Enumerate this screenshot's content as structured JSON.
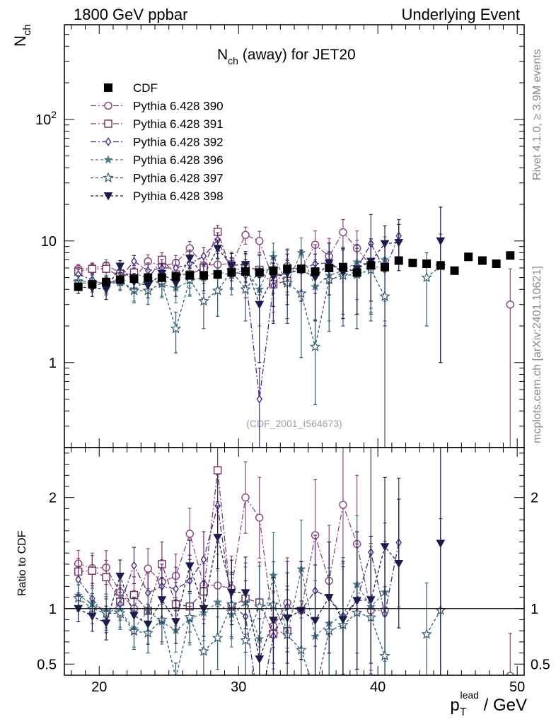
{
  "header": {
    "left": "1800 GeV ppbar",
    "right": "Underlying Event"
  },
  "side_label": "Rivet 4.1.0, ≥ 3.9M events",
  "side_label2": "mcplots.cern.ch [arXiv:2401.10621]",
  "watermark": "(CDF_2001_I564673)",
  "chart_data": {
    "type": "scatter",
    "title_main": "N",
    "title_sub": "ch",
    "title_rest": " (away) for JET20",
    "ylabel_main": "N",
    "ylabel_sub": "ch",
    "ratio_ylabel": "Ratio to CDF",
    "xlabel_main": "p",
    "xlabel_sub": "T",
    "xlabel_sup": "lead",
    "xlabel_rest": " / GeV",
    "xlim": [
      17.5,
      50.5
    ],
    "ylim": [
      0.2,
      600
    ],
    "yscale": "log",
    "ratio_ylim": [
      0.4,
      2.45
    ],
    "x_ticks": [
      20,
      30,
      40,
      50
    ],
    "x_tick_labels": [
      "20",
      "30",
      "40",
      "50"
    ],
    "y_ticks": [
      1,
      10,
      100
    ],
    "y_tick_labels": [
      "1",
      "10",
      "10^2"
    ],
    "ratio_ticks": [
      0.5,
      1,
      2
    ],
    "ratio_tick_labels": [
      "0.5",
      "1",
      "2"
    ],
    "reference": {
      "name": "CDF",
      "color": "#000000",
      "x": [
        18.5,
        19.5,
        20.5,
        21.5,
        22.5,
        23.5,
        24.5,
        25.5,
        26.5,
        27.5,
        28.5,
        29.5,
        30.5,
        31.5,
        32.5,
        33.5,
        34.5,
        35.5,
        36.5,
        37.5,
        38.5,
        39.5,
        40.5,
        41.5,
        42.5,
        43.5,
        44.5,
        45.5,
        46.5,
        47.5,
        48.5,
        49.5
      ],
      "y": [
        4.2,
        4.4,
        4.6,
        4.8,
        4.9,
        5.0,
        5.0,
        5.1,
        5.2,
        5.2,
        5.3,
        5.5,
        5.6,
        5.5,
        5.7,
        5.9,
        5.9,
        5.6,
        6.0,
        6.1,
        5.5,
        6.3,
        6.1,
        6.9,
        6.6,
        6.5,
        6.3,
        5.7,
        7.4,
        6.9,
        6.5,
        7.6
      ]
    },
    "series": [
      {
        "name": "Pythia 6.428 390",
        "marker": "circle-open",
        "color": "#8d4a7d",
        "dash": "8,3,2,3",
        "y": [
          5.9,
          6.0,
          6.3,
          5.5,
          4.9,
          6.8,
          6.2,
          6.6,
          8.7,
          6.3,
          6.4,
          6.5,
          11.2,
          10.0,
          4.8,
          6.2,
          5.8,
          9.3,
          7.5,
          11.8,
          8.7,
          6.2,
          6.0,
          null,
          null,
          null,
          null,
          null,
          null,
          null,
          null,
          3.0
        ],
        "err": [
          0.5,
          0.6,
          0.7,
          0.7,
          0.8,
          0.9,
          1.0,
          1.0,
          1.2,
          1.3,
          1.5,
          1.6,
          1.8,
          2.0,
          2.2,
          2.4,
          2.6,
          2.8,
          3.0,
          3.2,
          3.4,
          3.6,
          3.8,
          0,
          0,
          0,
          0,
          0,
          0,
          0,
          0,
          2.9
        ]
      },
      {
        "name": "Pythia 6.428 391",
        "marker": "square-open",
        "color": "#7a3a5c",
        "dash": "8,3,2,3",
        "y": [
          5.6,
          5.9,
          5.9,
          5.1,
          5.5,
          4.9,
          7.0,
          5.3,
          5.3,
          6.0,
          11.9,
          5.6,
          6.1,
          5.8,
          4.4,
          4.7,
          null,
          null,
          null,
          null,
          null,
          null,
          null,
          null,
          null,
          null,
          null,
          null,
          null,
          null,
          null,
          null
        ],
        "err": [
          0.5,
          0.6,
          0.7,
          0.7,
          0.8,
          0.9,
          1.0,
          1.0,
          1.2,
          1.3,
          1.5,
          1.6,
          1.8,
          2.0,
          2.2,
          2.4,
          0,
          0,
          0,
          0,
          0,
          0,
          0,
          0,
          0,
          0,
          0,
          0,
          0,
          0,
          0,
          0
        ]
      },
      {
        "name": "Pythia 6.428 392",
        "marker": "diamond-open",
        "color": "#4a2a8a",
        "dash": "8,3,2,3",
        "y": [
          5.3,
          4.8,
          4.3,
          5.0,
          6.8,
          5.7,
          6.0,
          6.0,
          6.5,
          7.5,
          10.2,
          5.7,
          5.2,
          0.5,
          4.3,
          6.0,
          5.8,
          6.5,
          6.6,
          5.7,
          5.9,
          9.5,
          5.8,
          11.0,
          null,
          null,
          null,
          null,
          null,
          null,
          null,
          null
        ],
        "err": [
          0.5,
          0.6,
          0.7,
          0.7,
          0.8,
          0.9,
          1.0,
          1.0,
          1.2,
          1.3,
          1.5,
          1.6,
          1.8,
          0.4,
          2.2,
          2.4,
          2.6,
          2.8,
          3.0,
          3.2,
          3.4,
          7.0,
          3.8,
          4.0,
          0,
          0,
          0,
          0,
          0,
          0,
          0,
          0
        ]
      },
      {
        "name": "Pythia 6.428 396",
        "marker": "star-filled",
        "color": "#4f7a86",
        "dash": "4,3",
        "y": [
          4.7,
          4.6,
          4.5,
          4.7,
          4.0,
          4.9,
          4.4,
          4.1,
          4.7,
          5.0,
          5.6,
          5.2,
          5.9,
          4.0,
          7.4,
          4.5,
          8.0,
          4.2,
          5.2,
          5.7,
          6.7,
          6.4,
          7.0,
          null,
          null,
          null,
          null,
          null,
          null,
          null,
          null,
          null
        ],
        "err": [
          0.5,
          0.6,
          0.7,
          0.7,
          0.8,
          0.9,
          1.0,
          1.0,
          1.2,
          1.3,
          1.5,
          1.6,
          1.8,
          2.0,
          2.2,
          2.4,
          2.6,
          2.8,
          3.0,
          3.2,
          3.4,
          3.6,
          3.8,
          0,
          0,
          0,
          0,
          0,
          0,
          0,
          0,
          0
        ]
      },
      {
        "name": "Pythia 6.428 397",
        "marker": "star-open",
        "color": "#2e5a6e",
        "dash": "4,3",
        "y": [
          4.6,
          4.4,
          4.4,
          4.6,
          3.9,
          3.9,
          4.5,
          1.9,
          4.8,
          3.2,
          3.9,
          5.7,
          4.0,
          5.6,
          5.9,
          4.5,
          3.7,
          1.35,
          4.8,
          5.2,
          5.3,
          5.8,
          3.5,
          null,
          null,
          5.0,
          6.2,
          null,
          null,
          null,
          null,
          null
        ],
        "err": [
          0.5,
          0.6,
          0.7,
          0.7,
          0.8,
          0.9,
          1.0,
          0.7,
          1.2,
          1.3,
          1.5,
          1.6,
          1.8,
          2.0,
          2.2,
          2.4,
          2.6,
          0.9,
          3.0,
          3.2,
          3.4,
          3.6,
          3.8,
          0,
          0,
          3.0,
          5.2,
          0,
          0,
          0,
          0,
          0
        ]
      },
      {
        "name": "Pythia 6.428 398",
        "marker": "triangle-down-filled",
        "color": "#1c1c4c",
        "dash": "4,3",
        "y": [
          4.2,
          4.1,
          4.0,
          6.2,
          4.6,
          4.3,
          5.4,
          4.5,
          7.2,
          5.2,
          8.7,
          6.3,
          6.4,
          3.0,
          5.1,
          5.4,
          5.8,
          5.0,
          6.6,
          5.5,
          5.9,
          6.8,
          9.5,
          9.7,
          null,
          null,
          10.0,
          null,
          null,
          null,
          null,
          null
        ],
        "err": [
          0.5,
          0.6,
          0.7,
          0.7,
          0.8,
          0.9,
          1.0,
          1.0,
          1.2,
          1.3,
          1.5,
          1.6,
          1.8,
          2.0,
          2.2,
          2.4,
          2.6,
          2.8,
          3.0,
          3.2,
          3.4,
          3.6,
          3.8,
          4.0,
          0,
          0,
          9.0,
          0,
          0,
          0,
          0,
          0
        ]
      }
    ]
  }
}
